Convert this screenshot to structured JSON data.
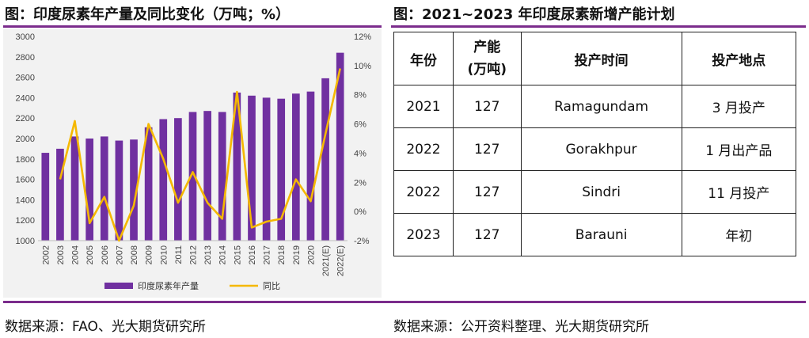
{
  "titles": {
    "left": "图：印度尿素年产量及同比变化（万吨；%）",
    "right": "图：2021~2023 年印度尿素新增产能计划"
  },
  "sources": {
    "left": "数据来源：FAO、光大期货研究所",
    "right": "数据来源：公开资料整理、光大期货研究所"
  },
  "colors": {
    "bar": "#7030a0",
    "line": "#f5b800",
    "rule": "#7b2c8c",
    "chart_bg": "#f2f2f2"
  },
  "chart_data": {
    "type": "bar+line",
    "categories": [
      "2002",
      "2003",
      "2004",
      "2005",
      "2006",
      "2007",
      "2008",
      "2009",
      "2010",
      "2011",
      "2012",
      "2013",
      "2014",
      "2015",
      "2016",
      "2017",
      "2018",
      "2019",
      "2020",
      "2021(E)",
      "2022(E)"
    ],
    "series": [
      {
        "name": "印度尿素年产量",
        "type": "bar",
        "axis": "left",
        "values": [
          1860,
          1900,
          2020,
          2000,
          2020,
          1980,
          1990,
          2110,
          2190,
          2200,
          2260,
          2270,
          2260,
          2450,
          2420,
          2400,
          2390,
          2440,
          2460,
          2590,
          2840
        ]
      },
      {
        "name": "同比",
        "type": "line",
        "axis": "right",
        "values": [
          null,
          2.2,
          6.2,
          -0.8,
          1.0,
          -2.0,
          0.4,
          6.0,
          3.6,
          0.6,
          2.7,
          0.6,
          -0.5,
          8.2,
          -1.1,
          -0.7,
          -0.5,
          2.2,
          0.7,
          5.3,
          9.8
        ]
      }
    ],
    "y_left": {
      "min": 1000,
      "max": 3000,
      "step": 200,
      "ticks": [
        "1000",
        "1200",
        "1400",
        "1600",
        "1800",
        "2000",
        "2200",
        "2400",
        "2600",
        "2800",
        "3000"
      ]
    },
    "y_right": {
      "min": -2,
      "max": 12,
      "step": 2,
      "ticks": [
        "-2%",
        "0%",
        "2%",
        "4%",
        "6%",
        "8%",
        "10%",
        "12%"
      ]
    },
    "legend": [
      "印度尿素年产量",
      "同比"
    ],
    "legend_position": "bottom"
  },
  "table": {
    "headers": [
      "年份",
      "产能\n(万吨)",
      "投产时间",
      "投产地点"
    ],
    "rows": [
      [
        "2021",
        "127",
        "Ramagundam",
        "3 月投产"
      ],
      [
        "2022",
        "127",
        "Gorakhpur",
        "1 月出产品"
      ],
      [
        "2022",
        "127",
        "Sindri",
        "11 月投产"
      ],
      [
        "2023",
        "127",
        "Barauni",
        "年初"
      ]
    ]
  }
}
